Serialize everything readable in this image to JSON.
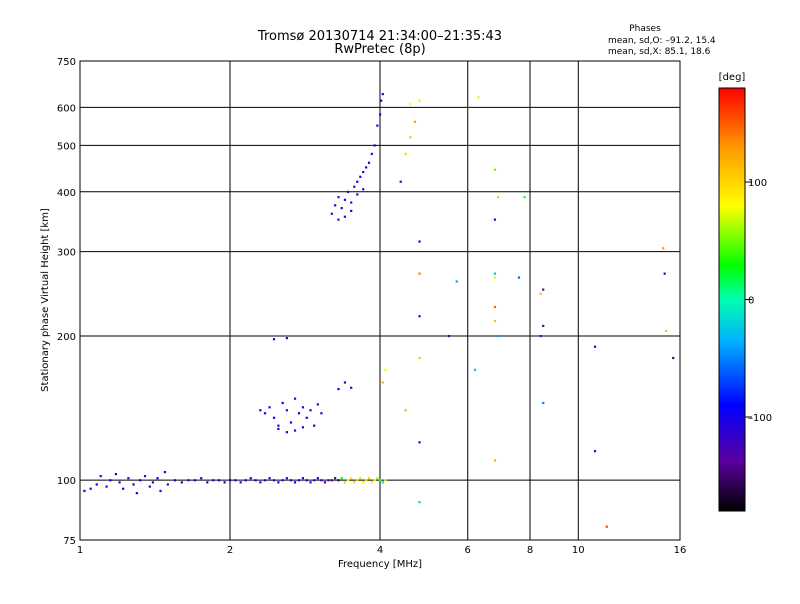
{
  "chart_data": {
    "type": "scatter",
    "title": "Tromsø 20130714 21:34:00–21:35:43",
    "subtitle": "RwPretec (8p)",
    "xlabel": "Frequency [MHz]",
    "ylabel": "Stationary phase Virtual Height [km]",
    "x_scale": "log",
    "y_scale": "log",
    "xlim": [
      1,
      16
    ],
    "ylim": [
      75,
      750
    ],
    "xticks": [
      1,
      2,
      4,
      6,
      8,
      10,
      16
    ],
    "xtick_labels": [
      "1",
      "2",
      "4",
      "6",
      "8",
      "10",
      "16"
    ],
    "yticks": [
      75,
      100,
      200,
      300,
      400,
      500,
      600,
      750
    ],
    "ytick_labels": [
      "75",
      "100",
      "200",
      "300",
      "400",
      "500",
      "600",
      "750"
    ],
    "grid": true,
    "phases": {
      "title": "Phases",
      "line_o": "mean, sd,O: –91.2, 15.4",
      "line_x": "mean, sd,X:  85.1, 18.6"
    },
    "colorbar": {
      "label": "[deg]",
      "range": [
        -180,
        180
      ],
      "ticks": [
        100,
        0,
        -100
      ],
      "tick_labels": [
        "100",
        "0",
        "–100"
      ]
    },
    "series": [
      {
        "points": [
          [
            1.02,
            95,
            -110
          ],
          [
            1.05,
            96,
            -120
          ],
          [
            1.08,
            98,
            -100
          ],
          [
            1.1,
            102,
            -115
          ],
          [
            1.13,
            97,
            -105
          ],
          [
            1.15,
            100,
            -95
          ],
          [
            1.18,
            103,
            -110
          ],
          [
            1.2,
            99,
            -120
          ],
          [
            1.22,
            96,
            -100
          ],
          [
            1.25,
            101,
            -115
          ],
          [
            1.28,
            98,
            -95
          ],
          [
            1.3,
            94,
            -110
          ],
          [
            1.32,
            100,
            -100
          ],
          [
            1.35,
            102,
            -120
          ],
          [
            1.38,
            97,
            -105
          ],
          [
            1.4,
            99,
            -110
          ],
          [
            1.43,
            101,
            -95
          ],
          [
            1.45,
            95,
            -115
          ],
          [
            1.48,
            104,
            -100
          ],
          [
            1.5,
            98,
            -110
          ],
          [
            1.55,
            100,
            -105
          ],
          [
            1.6,
            99,
            -100
          ],
          [
            1.65,
            100,
            -110
          ],
          [
            1.7,
            100,
            -95
          ],
          [
            1.75,
            101,
            -120
          ],
          [
            1.8,
            99,
            -100
          ],
          [
            1.85,
            100,
            -110
          ],
          [
            1.9,
            100,
            -105
          ],
          [
            1.95,
            99,
            -100
          ],
          [
            2.0,
            100,
            -110
          ],
          [
            2.05,
            100,
            -100
          ],
          [
            2.1,
            99,
            -115
          ],
          [
            2.15,
            100,
            -105
          ],
          [
            2.2,
            101,
            -110
          ],
          [
            2.25,
            100,
            -100
          ],
          [
            2.3,
            99,
            -115
          ],
          [
            2.35,
            100,
            -105
          ],
          [
            2.4,
            101,
            -100
          ],
          [
            2.45,
            100,
            -110
          ],
          [
            2.5,
            99,
            -100
          ],
          [
            2.55,
            100,
            -115
          ],
          [
            2.6,
            101,
            -105
          ],
          [
            2.65,
            100,
            -110
          ],
          [
            2.7,
            99,
            -100
          ],
          [
            2.75,
            100,
            -105
          ],
          [
            2.8,
            101,
            -115
          ],
          [
            2.85,
            100,
            -100
          ],
          [
            2.9,
            99,
            -110
          ],
          [
            2.95,
            100,
            -105
          ],
          [
            3.0,
            101,
            -100
          ],
          [
            3.05,
            100,
            -110
          ],
          [
            3.1,
            99,
            -120
          ],
          [
            3.15,
            100,
            -130
          ],
          [
            3.2,
            100,
            -140
          ],
          [
            3.25,
            101,
            -150
          ],
          [
            3.3,
            100,
            -160
          ],
          [
            3.35,
            101,
            30
          ],
          [
            3.4,
            99,
            60
          ],
          [
            3.45,
            100,
            80
          ],
          [
            3.5,
            101,
            90
          ],
          [
            3.55,
            99,
            95
          ],
          [
            3.6,
            100,
            100
          ],
          [
            3.65,
            101,
            90
          ],
          [
            3.7,
            99,
            85
          ],
          [
            3.75,
            100,
            95
          ],
          [
            3.8,
            101,
            100
          ],
          [
            3.85,
            99,
            90
          ],
          [
            3.9,
            100,
            80
          ],
          [
            3.95,
            101,
            60
          ],
          [
            4.0,
            100,
            40
          ],
          [
            4.05,
            99,
            -20
          ],
          [
            2.3,
            140,
            -110
          ],
          [
            2.35,
            138,
            -100
          ],
          [
            2.4,
            142,
            -115
          ],
          [
            2.45,
            135,
            -105
          ],
          [
            2.5,
            130,
            -110
          ],
          [
            2.55,
            145,
            -100
          ],
          [
            2.6,
            140,
            -120
          ],
          [
            2.65,
            132,
            -105
          ],
          [
            2.7,
            148,
            -110
          ],
          [
            2.75,
            138,
            -100
          ],
          [
            2.8,
            142,
            -115
          ],
          [
            2.85,
            135,
            -105
          ],
          [
            2.9,
            140,
            -110
          ],
          [
            2.95,
            130,
            -100
          ],
          [
            3.0,
            144,
            -110
          ],
          [
            3.05,
            138,
            -105
          ],
          [
            2.5,
            128,
            -100
          ],
          [
            2.6,
            126,
            -110
          ],
          [
            2.7,
            127,
            -105
          ],
          [
            2.8,
            129,
            -115
          ],
          [
            2.45,
            197,
            -105
          ],
          [
            2.6,
            198,
            -110
          ],
          [
            3.3,
            155,
            -110
          ],
          [
            3.4,
            160,
            -100
          ],
          [
            3.5,
            156,
            -120
          ],
          [
            3.2,
            360,
            -120
          ],
          [
            3.25,
            375,
            -110
          ],
          [
            3.3,
            390,
            -130
          ],
          [
            3.35,
            370,
            -115
          ],
          [
            3.4,
            385,
            -110
          ],
          [
            3.45,
            400,
            -105
          ],
          [
            3.5,
            380,
            -120
          ],
          [
            3.55,
            410,
            -110
          ],
          [
            3.6,
            420,
            -100
          ],
          [
            3.65,
            430,
            -110
          ],
          [
            3.7,
            440,
            -105
          ],
          [
            3.75,
            450,
            -115
          ],
          [
            3.8,
            460,
            -100
          ],
          [
            3.85,
            480,
            -110
          ],
          [
            3.9,
            500,
            -105
          ],
          [
            3.95,
            550,
            -100
          ],
          [
            4.0,
            580,
            -95
          ],
          [
            4.02,
            620,
            -100
          ],
          [
            4.05,
            640,
            -110
          ],
          [
            3.3,
            350,
            -125
          ],
          [
            3.4,
            355,
            -115
          ],
          [
            3.5,
            365,
            -105
          ],
          [
            3.6,
            395,
            -120
          ],
          [
            3.7,
            405,
            -110
          ],
          [
            4.1,
            100,
            90
          ],
          [
            4.05,
            160,
            120
          ],
          [
            4.1,
            170,
            80
          ],
          [
            4.4,
            420,
            -130
          ],
          [
            4.5,
            480,
            100
          ],
          [
            4.6,
            520,
            110
          ],
          [
            4.7,
            560,
            130
          ],
          [
            4.6,
            610,
            80
          ],
          [
            4.8,
            620,
            90
          ],
          [
            4.5,
            140,
            120
          ],
          [
            4.8,
            180,
            110
          ],
          [
            4.8,
            120,
            -110
          ],
          [
            4.8,
            90,
            -20
          ],
          [
            4.8,
            220,
            -100
          ],
          [
            4.8,
            270,
            140
          ],
          [
            4.8,
            315,
            -110
          ],
          [
            5.5,
            200,
            -140
          ],
          [
            5.7,
            260,
            -40
          ],
          [
            6.2,
            170,
            -30
          ],
          [
            6.3,
            630,
            90
          ],
          [
            6.8,
            445,
            50
          ],
          [
            6.8,
            350,
            -120
          ],
          [
            6.9,
            390,
            110
          ],
          [
            6.8,
            270,
            -30
          ],
          [
            6.8,
            265,
            90
          ],
          [
            6.8,
            230,
            150
          ],
          [
            6.8,
            215,
            110
          ],
          [
            6.9,
            200,
            -40
          ],
          [
            6.8,
            110,
            120
          ],
          [
            7.6,
            265,
            -60
          ],
          [
            7.8,
            390,
            20
          ],
          [
            8.4,
            245,
            110
          ],
          [
            8.5,
            250,
            -130
          ],
          [
            8.5,
            210,
            -140
          ],
          [
            8.4,
            200,
            -130
          ],
          [
            8.5,
            145,
            -50
          ],
          [
            10.8,
            190,
            -110
          ],
          [
            10.8,
            115,
            -130
          ],
          [
            11.4,
            80,
            160
          ],
          [
            14.8,
            305,
            130
          ],
          [
            14.9,
            270,
            -120
          ],
          [
            15.0,
            205,
            110
          ],
          [
            15.5,
            180,
            -150
          ]
        ]
      }
    ]
  }
}
